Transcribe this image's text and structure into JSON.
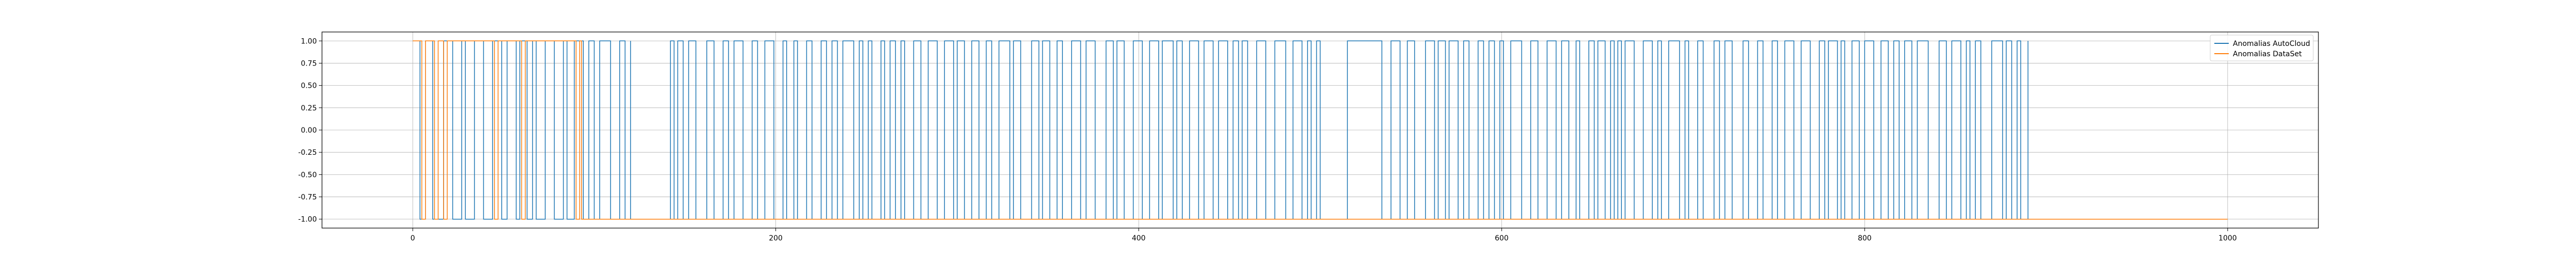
{
  "chart_data": {
    "type": "line",
    "title": "",
    "xlabel": "",
    "ylabel": "",
    "xlim": [
      -50,
      1050
    ],
    "ylim": [
      -1.1,
      1.1
    ],
    "xticks": [
      0,
      200,
      400,
      600,
      800,
      1000
    ],
    "yticks": [
      -1.0,
      -0.75,
      -0.5,
      -0.25,
      0.0,
      0.25,
      0.5,
      0.75,
      1.0
    ],
    "grid": true,
    "legend_position": "top-right",
    "series": [
      {
        "name": "Anomalias AutoCloud",
        "color": "#1f77b4",
        "x_range": [
          0,
          890
        ],
        "pattern": "binary switching between 1 and -1",
        "segments": [
          {
            "x_start": 0,
            "x_end": 120,
            "flip_period": 3
          },
          {
            "x_start": 120,
            "x_end": 137,
            "value": -1
          },
          {
            "x_start": 137,
            "x_end": 500,
            "flip_period": 3
          },
          {
            "x_start": 515,
            "x_end": 530,
            "value": 1
          },
          {
            "x_start": 530,
            "x_end": 890,
            "flip_period": 3
          }
        ]
      },
      {
        "name": "Anomalias DataSet",
        "color": "#ff7f0e",
        "x_range": [
          0,
          1000
        ],
        "steps": [
          {
            "x": 0,
            "y": 1
          },
          {
            "x": 5,
            "y": -1
          },
          {
            "x": 7,
            "y": 1
          },
          {
            "x": 12,
            "y": -1
          },
          {
            "x": 14,
            "y": 1
          },
          {
            "x": 17,
            "y": -1
          },
          {
            "x": 19,
            "y": 1
          },
          {
            "x": 45,
            "y": -1
          },
          {
            "x": 47,
            "y": 1
          },
          {
            "x": 60,
            "y": -1
          },
          {
            "x": 62,
            "y": 1
          },
          {
            "x": 90,
            "y": -1
          },
          {
            "x": 92,
            "y": 1
          },
          {
            "x": 93,
            "y": -1
          },
          {
            "x": 1000,
            "y": -1
          }
        ]
      }
    ]
  }
}
